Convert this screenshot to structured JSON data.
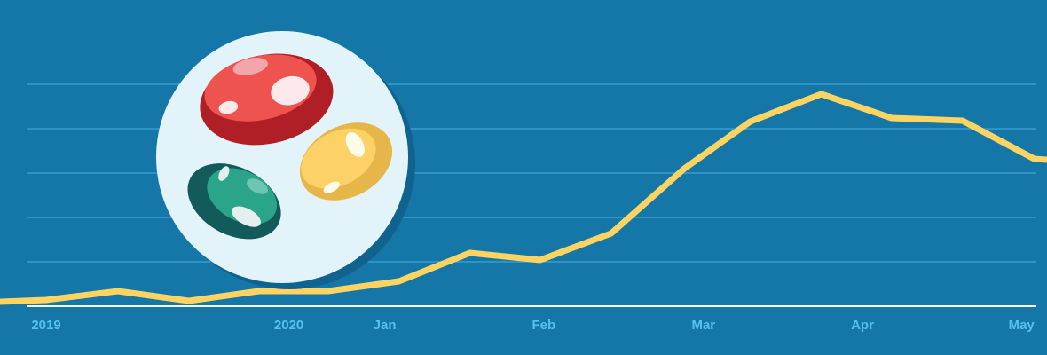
{
  "chart_data": {
    "type": "line",
    "title": "",
    "xlabel": "",
    "ylabel": "",
    "x_tick_labels": [
      {
        "label": "2019",
        "index": 0.65
      },
      {
        "label": "2020",
        "index": 4.07
      },
      {
        "label": "Jan",
        "index": 5.42
      },
      {
        "label": "Feb",
        "index": 7.66
      },
      {
        "label": "Mar",
        "index": 9.91
      },
      {
        "label": "Apr",
        "index": 12.15
      },
      {
        "label": "May",
        "index": 14.39
      }
    ],
    "x": [
      0,
      0.65,
      1.66,
      2.66,
      3.65,
      4.62,
      5.62,
      6.62,
      7.61,
      8.61,
      9.64,
      10.57,
      11.57,
      12.56,
      13.56,
      14.57,
      14.75
    ],
    "values": [
      0.1,
      0.14,
      0.34,
      0.12,
      0.34,
      0.34,
      0.56,
      1.2,
      1.04,
      1.64,
      3.1,
      4.16,
      4.78,
      4.24,
      4.18,
      3.32,
      3.3
    ],
    "ylim": [
      0,
      5
    ],
    "xlim": [
      0,
      14.75
    ],
    "grid": true,
    "gridlines": 5,
    "legend": "none",
    "colors": {
      "background": "#1576a8",
      "line": "#fdd361",
      "grid": "#3ea7dc",
      "axis": "#ffffff",
      "tick_text": "#55c1ee"
    }
  },
  "illustration": {
    "icon": "beans-icon",
    "colors": {
      "plate": "#e3f3fa",
      "red": "#ef5350",
      "red_dark": "#b01f25",
      "green": "#2aa58a",
      "green_dark": "#135a5b",
      "yellow": "#fcd266",
      "yellow_dark": "#e7b64a"
    }
  }
}
